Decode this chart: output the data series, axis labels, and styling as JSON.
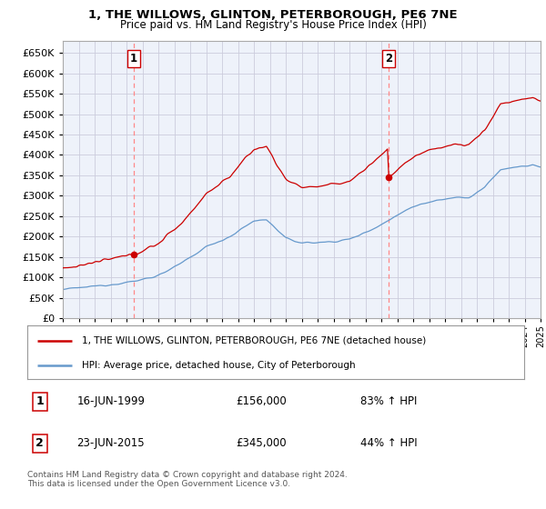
{
  "title1": "1, THE WILLOWS, GLINTON, PETERBOROUGH, PE6 7NE",
  "title2": "Price paid vs. HM Land Registry's House Price Index (HPI)",
  "legend_line1": "1, THE WILLOWS, GLINTON, PETERBOROUGH, PE6 7NE (detached house)",
  "legend_line2": "HPI: Average price, detached house, City of Peterborough",
  "sale1_label": "1",
  "sale1_date": "16-JUN-1999",
  "sale1_price": "£156,000",
  "sale1_hpi": "83% ↑ HPI",
  "sale2_label": "2",
  "sale2_date": "23-JUN-2015",
  "sale2_price": "£345,000",
  "sale2_hpi": "44% ↑ HPI",
  "footnote": "Contains HM Land Registry data © Crown copyright and database right 2024.\nThis data is licensed under the Open Government Licence v3.0.",
  "red_color": "#cc0000",
  "blue_color": "#6699cc",
  "dashed_red": "#ff8888",
  "background_color": "#ffffff",
  "grid_color": "#ccccdd",
  "plot_bg": "#eef2fa",
  "ylim_min": 0,
  "ylim_max": 680000,
  "yticks": [
    0,
    50000,
    100000,
    150000,
    200000,
    250000,
    300000,
    350000,
    400000,
    450000,
    500000,
    550000,
    600000,
    650000
  ],
  "year_start": 1995,
  "year_end": 2025,
  "sale1_year": 1999.458,
  "sale1_price_val": 156000,
  "sale2_year": 2015.458,
  "sale2_price_val": 345000
}
